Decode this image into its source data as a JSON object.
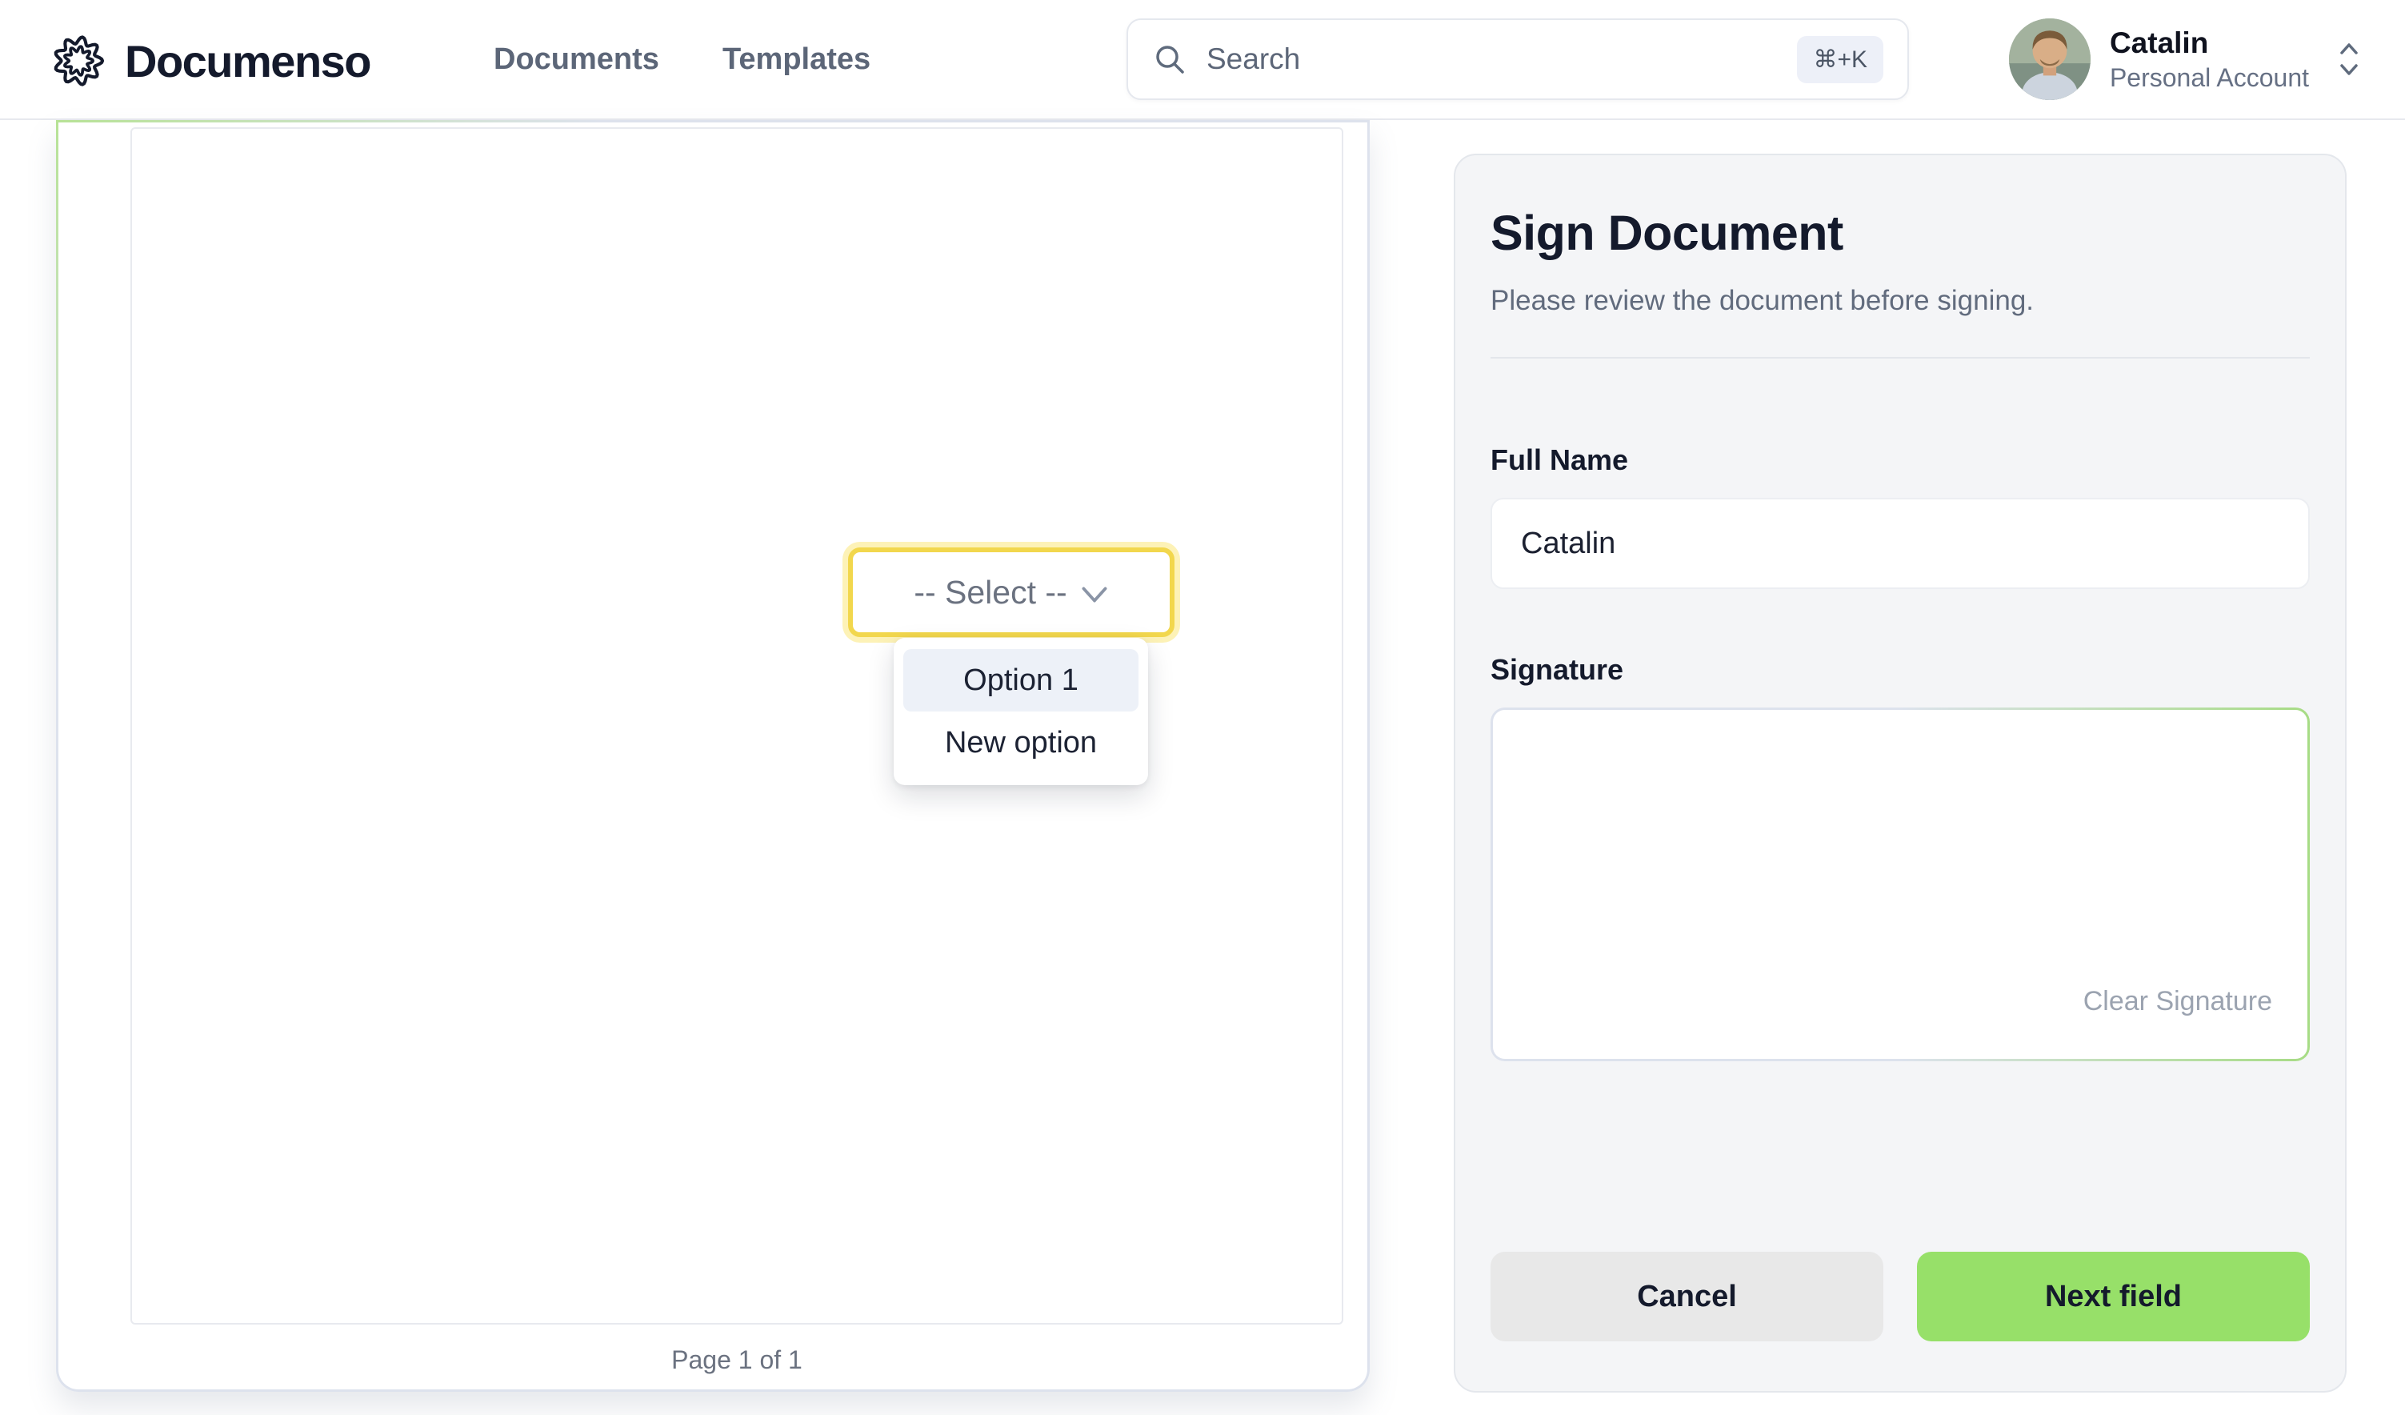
{
  "header": {
    "brand": "Documenso",
    "nav": [
      {
        "label": "Documents"
      },
      {
        "label": "Templates"
      }
    ],
    "search": {
      "placeholder": "Search",
      "shortcut": "⌘+K"
    },
    "account": {
      "name": "Catalin",
      "type": "Personal Account"
    }
  },
  "document": {
    "select_field": {
      "value": "-- Select --",
      "options": [
        "Option 1",
        "New option"
      ],
      "highlighted_option": "Option 1"
    },
    "page_label": "Page 1 of 1"
  },
  "sign_panel": {
    "title": "Sign Document",
    "subtitle": "Please review the document before signing.",
    "full_name": {
      "label": "Full Name",
      "value": "Catalin"
    },
    "signature": {
      "label": "Signature",
      "clear_label": "Clear Signature"
    },
    "cancel_label": "Cancel",
    "next_label": "Next field"
  },
  "colors": {
    "brand_green": "#97e069",
    "field_yellow": "#f2d74d",
    "field_yellow_pale": "#fdf2b7",
    "panel_bg": "#f4f5f7",
    "text_dark": "#141a2c",
    "text_slate": "#5c6678",
    "menu_highlight": "#edf1f8",
    "border_light": "#e5e8ee"
  }
}
